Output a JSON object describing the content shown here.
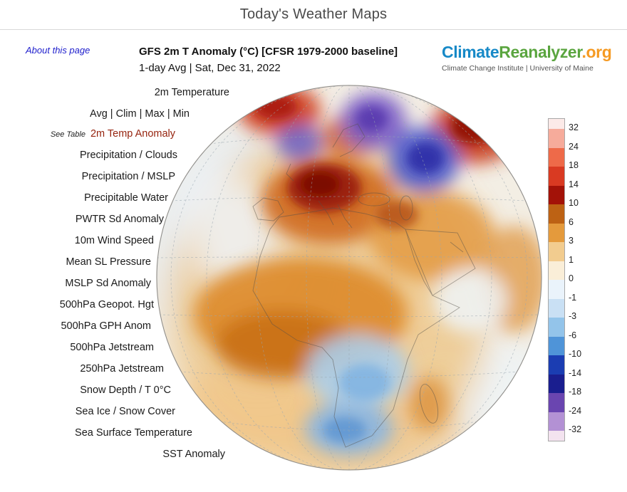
{
  "site_title": "Today's Weather Maps",
  "about_link": "About this page",
  "map_header": {
    "title": "GFS 2m T Anomaly (°C) [CFSR 1979-2000 baseline]",
    "subtitle": "1-day Avg | Sat, Dec 31, 2022"
  },
  "logo": {
    "part1": "Climate",
    "part2": "Reanalyzer",
    "part3": ".org",
    "colors": {
      "part1": "#1789c7",
      "part2": "#5aa53f",
      "part3": "#f59a23"
    },
    "tagline": "Climate Change Institute | University of Maine"
  },
  "nav": {
    "active_color": "#96240f",
    "items": [
      {
        "label": "2m Temperature"
      },
      {
        "label": "Avg | Clim | Max | Min"
      },
      {
        "prefix": "See Table",
        "label": "2m Temp Anomaly",
        "active": true
      },
      {
        "label": "Precipitation / Clouds"
      },
      {
        "label": "Precipitation / MSLP"
      },
      {
        "label": "Precipitable Water"
      },
      {
        "label": "PWTR Sd Anomaly"
      },
      {
        "label": "10m Wind Speed"
      },
      {
        "label": "Mean SL Pressure"
      },
      {
        "label": "MSLP Sd Anomaly"
      },
      {
        "label": "500hPa Geopot. Hgt"
      },
      {
        "label": "500hPa GPH Anom"
      },
      {
        "label": "500hPa Jetstream"
      },
      {
        "label": "250hPa Jetstream"
      },
      {
        "label": "Snow Depth / T 0°C"
      },
      {
        "label": "Sea Ice / Snow Cover"
      },
      {
        "label": "Sea Surface Temperature"
      },
      {
        "label": "SST Anomaly"
      }
    ]
  },
  "colorbar": {
    "ticks": [
      "32",
      "24",
      "18",
      "14",
      "10",
      "6",
      "3",
      "1",
      "0",
      "-1",
      "-3",
      "-6",
      "-10",
      "-14",
      "-18",
      "-24",
      "-32"
    ],
    "segments": [
      "#fceae8",
      "#f6ab9b",
      "#ee6a49",
      "#d93a22",
      "#a31208",
      "#bd6214",
      "#e49a3c",
      "#f2cc8f",
      "#faeed8",
      "#eaf3fb",
      "#c9e0f4",
      "#93c4ea",
      "#4f94d8",
      "#1b3db2",
      "#1a1e8f",
      "#6a45b0",
      "#b391d4",
      "#f3e3ef"
    ]
  }
}
